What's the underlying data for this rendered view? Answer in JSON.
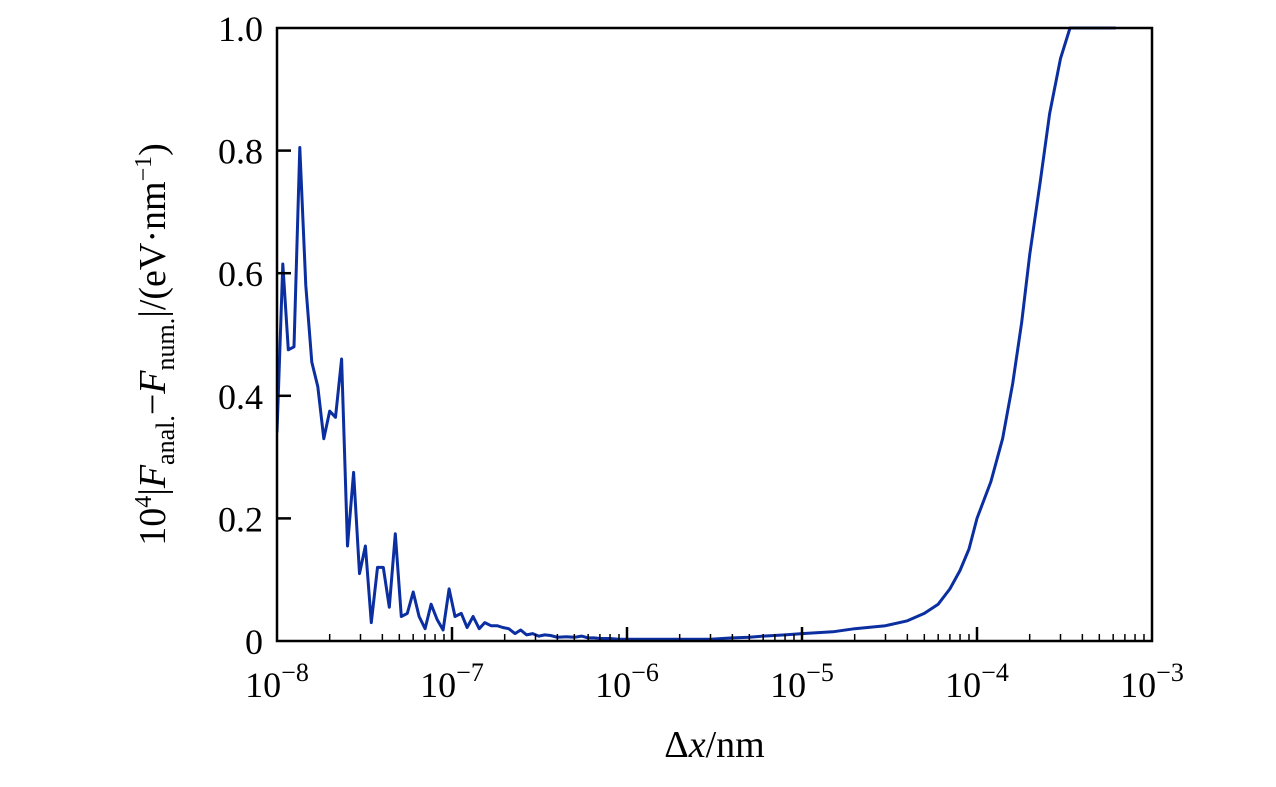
{
  "chart_data": {
    "type": "line",
    "xscale": "log",
    "xlabel": "Δx/nm",
    "ylabel": "10⁴|F anal. − F num.|/(eV·nm⁻¹)",
    "ylabel_parts": {
      "coef_base": "10",
      "coef_exp": "4",
      "bar_left": "|",
      "F1": "F",
      "F1_sub": "anal.",
      "minus": "−",
      "F2": "F",
      "F2_sub": "num.",
      "bar_right": "|",
      "unit_open": "/(eV·nm",
      "unit_exp": "−1",
      "unit_close": ")"
    },
    "xlabel_parts": {
      "delta": "Δ",
      "var": "x",
      "unit": "/nm"
    },
    "xlim": [
      1e-08,
      0.001
    ],
    "ylim": [
      0,
      1.0
    ],
    "x_ticks": [
      {
        "value": 1e-08,
        "base": "10",
        "exp": "−8"
      },
      {
        "value": 1e-07,
        "base": "10",
        "exp": "−7"
      },
      {
        "value": 1e-06,
        "base": "10",
        "exp": "−6"
      },
      {
        "value": 1e-05,
        "base": "10",
        "exp": "−5"
      },
      {
        "value": 0.0001,
        "base": "10",
        "exp": "−4"
      },
      {
        "value": 0.001,
        "base": "10",
        "exp": "−3"
      }
    ],
    "y_ticks": [
      {
        "value": 0,
        "label": "0"
      },
      {
        "value": 0.2,
        "label": "0.2"
      },
      {
        "value": 0.4,
        "label": "0.4"
      },
      {
        "value": 0.6,
        "label": "0.6"
      },
      {
        "value": 0.8,
        "label": "0.8"
      },
      {
        "value": 1.0,
        "label": "1.0"
      }
    ],
    "grid": false,
    "line_color": "#0b2fa0",
    "series": [
      {
        "x": [
          1e-08,
          1.08e-08,
          1.16e-08,
          1.25e-08,
          1.35e-08,
          1.46e-08,
          1.58e-08,
          1.71e-08,
          1.85e-08,
          2e-08,
          2.16e-08,
          2.34e-08,
          2.53e-08,
          2.74e-08,
          2.96e-08,
          3.2e-08,
          3.46e-08,
          3.75e-08,
          4.05e-08,
          4.38e-08,
          4.74e-08,
          5.13e-08,
          5.55e-08,
          6e-08,
          6.49e-08,
          7.02e-08,
          7.6e-08,
          8.22e-08,
          8.89e-08,
          9.62e-08,
          1.04e-07,
          1.13e-07,
          1.22e-07,
          1.32e-07,
          1.43e-07,
          1.54e-07,
          1.67e-07,
          1.81e-07,
          1.95e-07,
          2.11e-07,
          2.29e-07,
          2.47e-07,
          2.67e-07,
          2.89e-07,
          3.13e-07,
          3.39e-07,
          3.66e-07,
          4e-07,
          4.5e-07,
          5e-07,
          5.5e-07,
          6e-07,
          6.5e-07,
          7e-07,
          8e-07,
          9e-07,
          1e-06,
          1.2e-06,
          1.5e-06,
          1.8e-06,
          2e-06,
          2.3e-06,
          2.6e-06,
          3e-06,
          3.5e-06,
          4e-06,
          5e-06,
          6e-06,
          8e-06,
          1e-05,
          1.5e-05,
          2e-05,
          3e-05,
          4e-05,
          5e-05,
          6e-05,
          7e-05,
          8e-05,
          9e-05,
          0.0001,
          0.00012,
          0.00014,
          0.00016,
          0.00018,
          0.0002,
          0.00023,
          0.00026,
          0.0003,
          0.00034,
          0.00038,
          0.00042,
          0.00046,
          0.0005,
          0.00055,
          0.0006,
          0.00062
        ],
        "y": [
          0.34,
          0.615,
          0.475,
          0.48,
          0.805,
          0.58,
          0.455,
          0.415,
          0.33,
          0.375,
          0.365,
          0.46,
          0.155,
          0.275,
          0.11,
          0.155,
          0.03,
          0.12,
          0.12,
          0.055,
          0.175,
          0.04,
          0.045,
          0.08,
          0.04,
          0.02,
          0.06,
          0.035,
          0.018,
          0.085,
          0.04,
          0.045,
          0.022,
          0.04,
          0.02,
          0.03,
          0.025,
          0.025,
          0.022,
          0.02,
          0.012,
          0.018,
          0.01,
          0.012,
          0.008,
          0.01,
          0.009,
          0.006,
          0.007,
          0.006,
          0.008,
          0.005,
          0.005,
          0.004,
          0.004,
          0.003,
          0.003,
          0.003,
          0.003,
          0.003,
          0.003,
          0.003,
          0.003,
          0.003,
          0.004,
          0.005,
          0.006,
          0.008,
          0.01,
          0.012,
          0.015,
          0.02,
          0.025,
          0.033,
          0.045,
          0.06,
          0.085,
          0.115,
          0.15,
          0.2,
          0.26,
          0.33,
          0.42,
          0.52,
          0.63,
          0.75,
          0.86,
          0.95,
          1.0,
          1.0,
          1.0,
          1.0,
          1.0,
          1.0,
          1.0,
          1.0
        ]
      }
    ]
  }
}
